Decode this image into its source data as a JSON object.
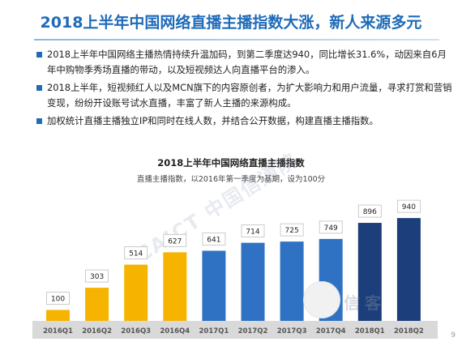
{
  "slide": {
    "title": "2018上半年中国网络直播主播指数大涨，新人来源多元",
    "bullets": [
      "2018上半年中国网络主播热情持续升温加码，到第二季度达940，同比增长31.6%，动因来自6月年中购物季秀场直播的带动，以及短视频达人向直播平台的渗入。",
      "2018上半年，短视频红人以及MCN旗下的内容原创者，为扩大影响力和用户流量，寻求打赏和营销变现，纷纷开设账号试水直播，丰富了新人主播的来源构成。",
      "加权统计直播主播独立IP和同时在线人数，并结合公开数据，构建直播主播指数。"
    ],
    "page_number": "9",
    "watermark_text": "CAICT 中国信通院",
    "watermark_logo_text": "信客"
  },
  "colors": {
    "title": "#1f6bb8",
    "bullet": "#1f6bb8",
    "bar_2016": "#f6b400",
    "bar_2017": "#2f72c4",
    "bar_2018": "#1c3e7a"
  },
  "chart_data": {
    "type": "bar",
    "title": "2018上半年中国网络直播主播指数",
    "subtitle": "直播主播指数，以2016年第一季度为基期，设为100分",
    "categories": [
      "2016Q1",
      "2016Q2",
      "2016Q3",
      "2016Q4",
      "2017Q1",
      "2017Q2",
      "2017Q3",
      "2017Q4",
      "2018Q1",
      "2018Q2"
    ],
    "values": [
      100,
      303,
      514,
      627,
      641,
      714,
      725,
      749,
      896,
      940
    ],
    "color_groups": [
      "2016",
      "2016",
      "2016",
      "2016",
      "2017",
      "2017",
      "2017",
      "2017",
      "2018",
      "2018"
    ],
    "data_labels": true,
    "ylim": [
      0,
      1000
    ],
    "grid": false,
    "legend": "none"
  }
}
